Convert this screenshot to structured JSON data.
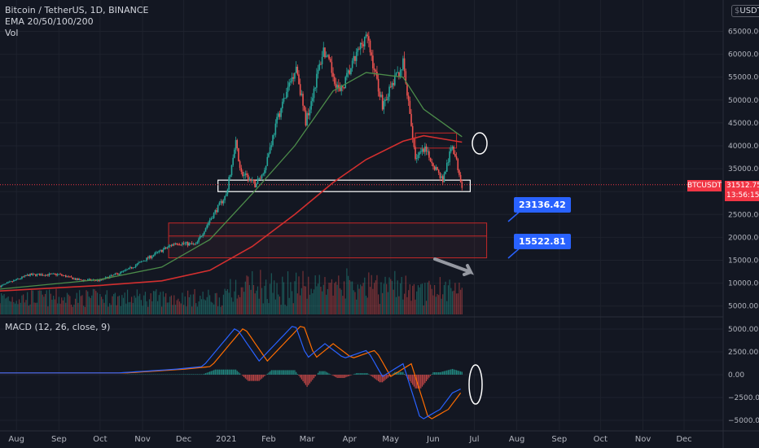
{
  "header": {
    "title": "Bitcoin / TetherUS, 1D, BINANCE",
    "indicator": "EMA 20/50/100/200",
    "volume_label": "Vol",
    "currency": "USDT"
  },
  "macd": {
    "label": "MACD (12, 26, close, 9)"
  },
  "annotations": {
    "target1": "23136.42",
    "target2": "15522.81",
    "symbol": "BTCUSDT",
    "last_price": "31512.75",
    "countdown": "13:56:15"
  },
  "colors": {
    "background": "#131722",
    "grid": "#1e222d",
    "up": "#26a69a",
    "down": "#ef5350",
    "ema_green": "#4c8c4a",
    "ema_red": "#d32f2f",
    "macd_line": "#2962ff",
    "signal_line": "#ff6d00",
    "tag_blue": "#2962ff",
    "price_red": "#f23645"
  },
  "chart_data": [
    {
      "type": "candlestick",
      "symbol": "BTCUSDT",
      "x_ticks": [
        "Aug",
        "Sep",
        "Oct",
        "Nov",
        "Dec",
        "2021",
        "Feb",
        "Mar",
        "Apr",
        "May",
        "Jun",
        "Jul",
        "Aug",
        "Sep",
        "Oct",
        "Nov",
        "Dec"
      ],
      "y_ticks": [
        65000,
        60000,
        55000,
        50000,
        45000,
        40000,
        35000,
        30000,
        25000,
        20000,
        15000,
        10000,
        5000
      ],
      "y_tick_labels": [
        "65000.00",
        "60000.00",
        "55000.00",
        "50000.00",
        "45000.00",
        "40000.00",
        "35000.00",
        "30000.00",
        "25000.00",
        "20000.00",
        "15000.00",
        "10000.00",
        "5000.00"
      ],
      "ylim": [
        2000,
        68000
      ],
      "close_path": [
        [
          "2020-07-20",
          9300
        ],
        [
          "2020-08-10",
          11800
        ],
        [
          "2020-09-01",
          11900
        ],
        [
          "2020-09-15",
          10700
        ],
        [
          "2020-10-01",
          10600
        ],
        [
          "2020-10-21",
          12900
        ],
        [
          "2020-11-05",
          15500
        ],
        [
          "2020-11-25",
          18800
        ],
        [
          "2020-12-10",
          18400
        ],
        [
          "2020-12-20",
          23800
        ],
        [
          "2021-01-01",
          29300
        ],
        [
          "2021-01-08",
          40500
        ],
        [
          "2021-01-12",
          34000
        ],
        [
          "2021-01-22",
          31500
        ],
        [
          "2021-01-28",
          34000
        ],
        [
          "2021-02-08",
          46500
        ],
        [
          "2021-02-21",
          57500
        ],
        [
          "2021-02-28",
          45200
        ],
        [
          "2021-03-13",
          61000
        ],
        [
          "2021-03-25",
          51500
        ],
        [
          "2021-04-13",
          64500
        ],
        [
          "2021-04-25",
          49000
        ],
        [
          "2021-05-10",
          58000
        ],
        [
          "2021-05-19",
          37500
        ],
        [
          "2021-05-26",
          39000
        ],
        [
          "2021-06-08",
          32500
        ],
        [
          "2021-06-15",
          40200
        ],
        [
          "2021-06-22",
          31500
        ]
      ],
      "ema_50": [
        [
          "2020-07-20",
          8700
        ],
        [
          "2020-10-01",
          10800
        ],
        [
          "2020-11-15",
          13500
        ],
        [
          "2020-12-20",
          19500
        ],
        [
          "2021-01-20",
          29500
        ],
        [
          "2021-02-20",
          40000
        ],
        [
          "2021-03-20",
          52000
        ],
        [
          "2021-04-13",
          56000
        ],
        [
          "2021-05-10",
          55000
        ],
        [
          "2021-05-25",
          48000
        ],
        [
          "2021-06-22",
          42000
        ]
      ],
      "ema_200": [
        [
          "2020-07-20",
          8300
        ],
        [
          "2020-10-01",
          9500
        ],
        [
          "2020-11-15",
          10500
        ],
        [
          "2020-12-20",
          12800
        ],
        [
          "2021-01-20",
          18000
        ],
        [
          "2021-02-20",
          25000
        ],
        [
          "2021-03-20",
          32000
        ],
        [
          "2021-04-13",
          37000
        ],
        [
          "2021-05-10",
          41000
        ],
        [
          "2021-05-25",
          42200
        ],
        [
          "2021-06-22",
          40800
        ]
      ],
      "support_zone": [
        30000,
        32500
      ],
      "target_zone_1": 23136.42,
      "target_zone_2": 15522.81,
      "last_price": 31512.75
    },
    {
      "type": "area",
      "name": "MACD (12, 26, close, 9)",
      "y_ticks": [
        5000,
        2500,
        0,
        -2500,
        -5000
      ],
      "y_tick_labels": [
        "5000.00",
        "2500.00",
        "0.00",
        "−2500.00",
        "−5000.00"
      ],
      "ylim": [
        -5600,
        6300
      ],
      "macd_path": [
        [
          "2020-07-20",
          200
        ],
        [
          "2020-10-15",
          200
        ],
        [
          "2020-11-25",
          600
        ],
        [
          "2020-12-15",
          900
        ],
        [
          "2021-01-08",
          5200
        ],
        [
          "2021-01-25",
          1500
        ],
        [
          "2021-02-20",
          5600
        ],
        [
          "2021-03-01",
          1800
        ],
        [
          "2021-03-14",
          3400
        ],
        [
          "2021-03-28",
          1800
        ],
        [
          "2021-04-14",
          2700
        ],
        [
          "2021-04-25",
          -200
        ],
        [
          "2021-05-10",
          1200
        ],
        [
          "2021-05-23",
          -5000
        ],
        [
          "2021-06-06",
          -3800
        ],
        [
          "2021-06-15",
          -2000
        ],
        [
          "2021-06-22",
          -1500
        ]
      ]
    }
  ]
}
